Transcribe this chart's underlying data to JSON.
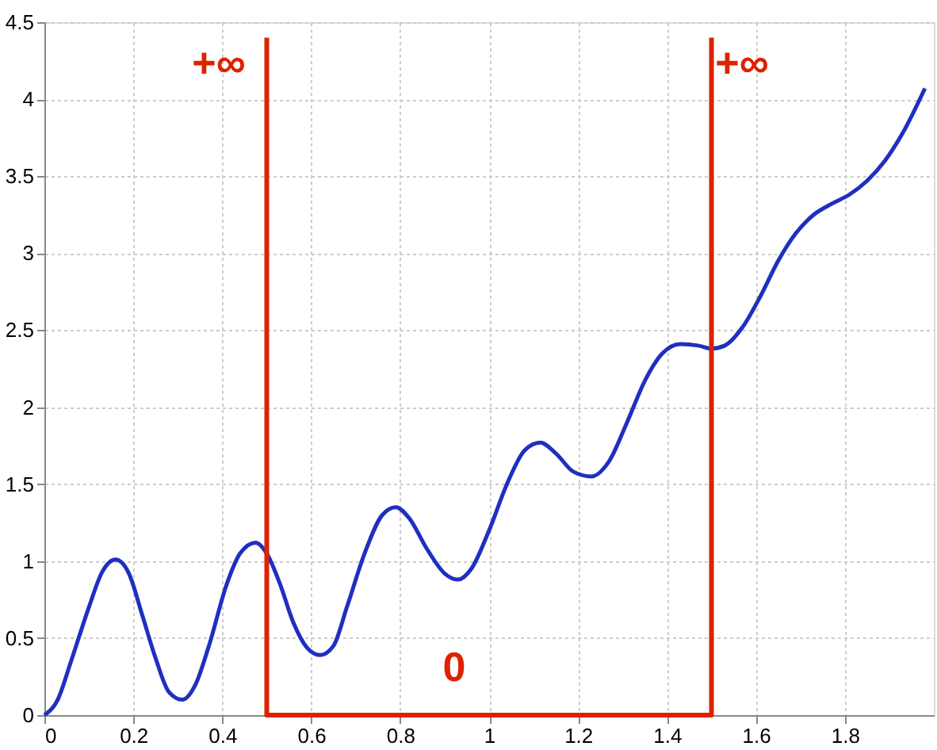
{
  "chart_data": {
    "type": "line",
    "xlim": [
      0,
      2
    ],
    "ylim": [
      0,
      4.5
    ],
    "xticks": [
      0,
      0.2,
      0.4,
      0.6,
      0.8,
      1,
      1.2,
      1.4,
      1.6,
      1.8
    ],
    "yticks": [
      0,
      0.5,
      1,
      1.5,
      2,
      2.5,
      3,
      3.5,
      4,
      4.5
    ],
    "grid": true,
    "line_style": "solid",
    "series": [
      {
        "color": "#1f2fc0",
        "x": [
          0,
          0.03,
          0.06,
          0.1,
          0.13,
          0.16,
          0.19,
          0.22,
          0.25,
          0.28,
          0.31,
          0.34,
          0.37,
          0.41,
          0.44,
          0.475,
          0.5,
          0.53,
          0.56,
          0.59,
          0.62,
          0.65,
          0.68,
          0.72,
          0.76,
          0.79,
          0.82,
          0.86,
          0.9,
          0.93,
          0.96,
          1.0,
          1.04,
          1.08,
          1.115,
          1.15,
          1.19,
          1.23,
          1.27,
          1.31,
          1.35,
          1.39,
          1.43,
          1.47,
          1.5,
          1.53,
          1.57,
          1.61,
          1.65,
          1.69,
          1.73,
          1.77,
          1.81,
          1.85,
          1.89,
          1.93,
          1.98
        ],
        "values": [
          0,
          0.1,
          0.35,
          0.7,
          0.93,
          1.01,
          0.92,
          0.65,
          0.37,
          0.15,
          0.1,
          0.2,
          0.45,
          0.85,
          1.05,
          1.12,
          1.05,
          0.85,
          0.6,
          0.44,
          0.39,
          0.45,
          0.7,
          1.05,
          1.3,
          1.35,
          1.28,
          1.08,
          0.92,
          0.88,
          0.95,
          1.2,
          1.5,
          1.72,
          1.77,
          1.7,
          1.58,
          1.55,
          1.65,
          1.9,
          2.17,
          2.35,
          2.41,
          2.4,
          2.38,
          2.4,
          2.52,
          2.72,
          2.95,
          3.13,
          3.25,
          3.32,
          3.38,
          3.47,
          3.6,
          3.78,
          4.07
        ]
      },
      {
        "color": "#dd2200",
        "x": [
          0.5,
          0.5,
          1.5,
          1.5
        ],
        "values": [
          4.4,
          0,
          0,
          4.4
        ]
      }
    ],
    "annotations": [
      "+∞",
      "0",
      "+∞"
    ]
  }
}
